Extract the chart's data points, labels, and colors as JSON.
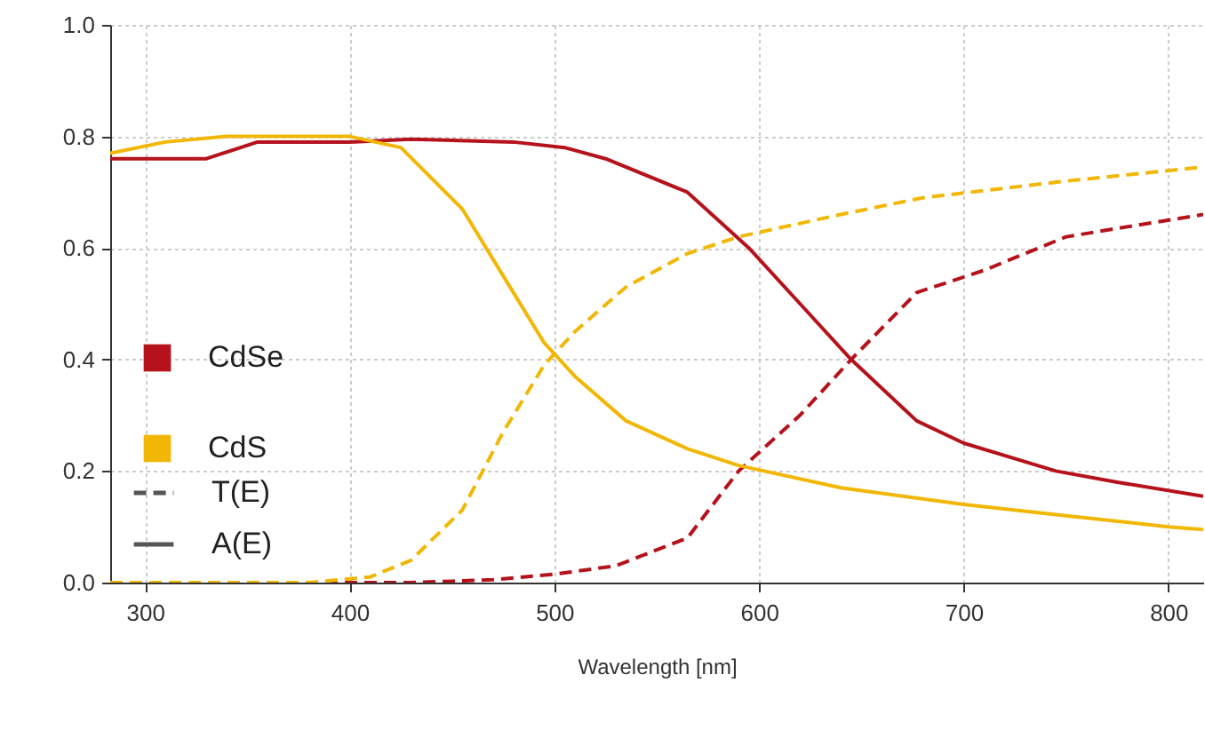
{
  "chart_data": {
    "type": "line",
    "xlabel": "Wavelength [nm]",
    "xlim": [
      283,
      817
    ],
    "xticks": [
      300,
      400,
      500,
      600,
      700,
      800
    ],
    "ylim": [
      0,
      1
    ],
    "yticks": [
      {
        "value": 0,
        "label": "0.0"
      },
      {
        "value": 0.2,
        "label": "0.2"
      },
      {
        "value": 0.4,
        "label": "0.4"
      },
      {
        "value": 0.6,
        "label": "0.6"
      },
      {
        "value": 0.8,
        "label": "0.8"
      },
      {
        "value": 1.0,
        "label": "1.0"
      }
    ],
    "grid": true,
    "legend": "bottom left",
    "annotations": [
      "T(E)",
      "A(E)"
    ],
    "series": [
      {
        "name": "CdSe",
        "color": "#b5121b",
        "line_style": "solid",
        "x": [
          283,
          330,
          355,
          400,
          430,
          480,
          505,
          525,
          565,
          595,
          620,
          645,
          677,
          700,
          745,
          775,
          817
        ],
        "values": [
          0.76,
          0.76,
          0.79,
          0.79,
          0.795,
          0.79,
          0.78,
          0.76,
          0.7,
          0.6,
          0.5,
          0.4,
          0.29,
          0.25,
          0.2,
          0.18,
          0.155
        ]
      },
      {
        "color": "#b5121b",
        "line_style": "dashed",
        "x": [
          283,
          430,
          470,
          500,
          530,
          565,
          590,
          620,
          645,
          677,
          710,
          750,
          775,
          817
        ],
        "values": [
          0,
          0,
          0.005,
          0.015,
          0.03,
          0.08,
          0.2,
          0.3,
          0.4,
          0.52,
          0.56,
          0.62,
          0.635,
          0.66
        ]
      },
      {
        "name": "CdS",
        "color": "#f2b705",
        "line_style": "solid",
        "x": [
          283,
          310,
          340,
          400,
          425,
          455,
          475,
          495,
          510,
          535,
          565,
          590,
          640,
          700,
          750,
          800,
          817
        ],
        "values": [
          0.77,
          0.79,
          0.8,
          0.8,
          0.78,
          0.67,
          0.55,
          0.43,
          0.37,
          0.29,
          0.24,
          0.21,
          0.17,
          0.14,
          0.12,
          0.1,
          0.095
        ]
      },
      {
        "color": "#f2b705",
        "line_style": "dashed",
        "x": [
          283,
          380,
          410,
          430,
          455,
          475,
          495,
          510,
          535,
          565,
          590,
          640,
          680,
          750,
          817
        ],
        "values": [
          0,
          0,
          0.01,
          0.04,
          0.13,
          0.27,
          0.39,
          0.45,
          0.53,
          0.59,
          0.62,
          0.66,
          0.69,
          0.72,
          0.745
        ]
      }
    ]
  }
}
